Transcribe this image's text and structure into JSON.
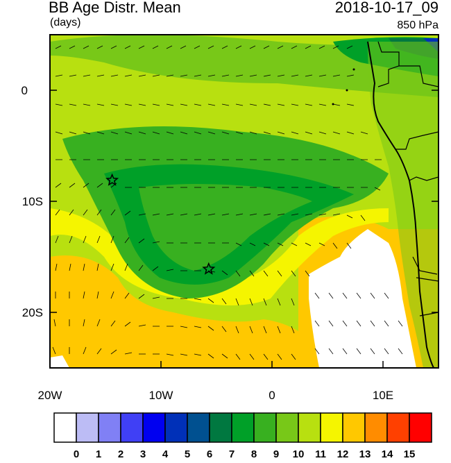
{
  "header": {
    "title": "BB Age Distr. Mean",
    "units": "(days)",
    "datetime": "2018-10-17_09",
    "level": "850 hPa"
  },
  "map": {
    "lon_range": [
      -20,
      15
    ],
    "lat_range": [
      -25,
      5
    ],
    "x_ticks": [
      "20W",
      "10W",
      "0",
      "10E"
    ],
    "y_ticks": [
      "0",
      "10S",
      "20S"
    ],
    "markers": [
      {
        "name": "star",
        "lon": -14.4,
        "lat": -8.1
      },
      {
        "name": "star",
        "lon": -5.7,
        "lat": -16.1
      }
    ],
    "masked_region": "white (no data) over Namib / SE Atlantic coast near 4–11E, 15–25S"
  },
  "colorbar": {
    "labels": [
      "0",
      "1",
      "2",
      "3",
      "4",
      "5",
      "6",
      "7",
      "8",
      "9",
      "10",
      "11",
      "12",
      "13",
      "14",
      "15"
    ],
    "colors": [
      "#ffffff",
      "#bcbcf5",
      "#8080f5",
      "#4040f5",
      "#0000f0",
      "#0030b8",
      "#005090",
      "#007840",
      "#00a028",
      "#38b020",
      "#78c818",
      "#b8e010",
      "#f5f500",
      "#ffc800",
      "#ff8c00",
      "#ff4000",
      "#ff0000"
    ]
  }
}
